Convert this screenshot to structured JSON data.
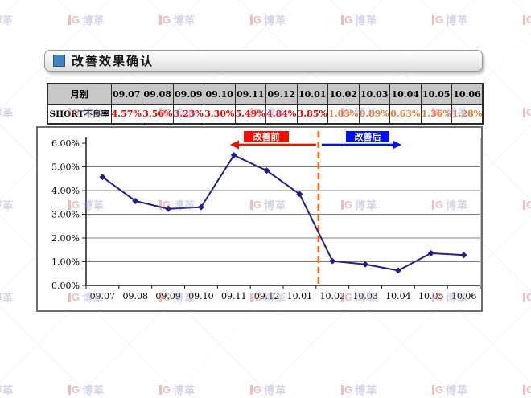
{
  "title": {
    "text": "改善效果确认"
  },
  "table": {
    "header_label": "月别",
    "row_label": "SHORT不良率",
    "columns": [
      "09.07",
      "09.08",
      "09.09",
      "09.10",
      "09.11",
      "09.12",
      "10.01",
      "10.02",
      "10.03",
      "10.04",
      "10.05",
      "10.06"
    ],
    "values": [
      "4.57%",
      "3.56%",
      "3.23%",
      "3.30%",
      "5.49%",
      "4.84%",
      "3.85%",
      "1.03%",
      "0.89%",
      "0.63%",
      "1.36%",
      "1.28%"
    ],
    "before_count": 7
  },
  "chart_data": {
    "type": "line",
    "title": "",
    "categories": [
      "09.07",
      "09.08",
      "09.09",
      "09.10",
      "09.11",
      "09.12",
      "10.01",
      "10.02",
      "10.03",
      "10.04",
      "10.05",
      "10.06"
    ],
    "series": [
      {
        "name": "SHORT不良率",
        "values": [
          4.57,
          3.56,
          3.23,
          3.3,
          5.49,
          4.84,
          3.85,
          1.03,
          0.89,
          0.63,
          1.36,
          1.28
        ]
      }
    ],
    "xlabel": "",
    "ylabel": "",
    "ylim": [
      0,
      6
    ],
    "y_ticks": [
      "0.00%",
      "1.00%",
      "2.00%",
      "3.00%",
      "4.00%",
      "5.00%",
      "6.00%"
    ],
    "grid": true,
    "legend": "none",
    "annotations": {
      "before_label": "改善前",
      "after_label": "改善后",
      "divider_after_category": "10.01"
    }
  },
  "colors": {
    "before_value": "#ee0000",
    "after_value": "#ed7d31",
    "line": "#202088",
    "marker": "#202088",
    "divider": "#ff6600",
    "before_accent": "#ee1100",
    "after_accent": "#0011ee",
    "gridline": "#808080",
    "axis": "#1d1d1d",
    "table_header_bg": "#c7c7c7",
    "title_bullet": "#4183c4"
  },
  "watermark": {
    "logo_letter": "G",
    "brand_text": "博革"
  }
}
